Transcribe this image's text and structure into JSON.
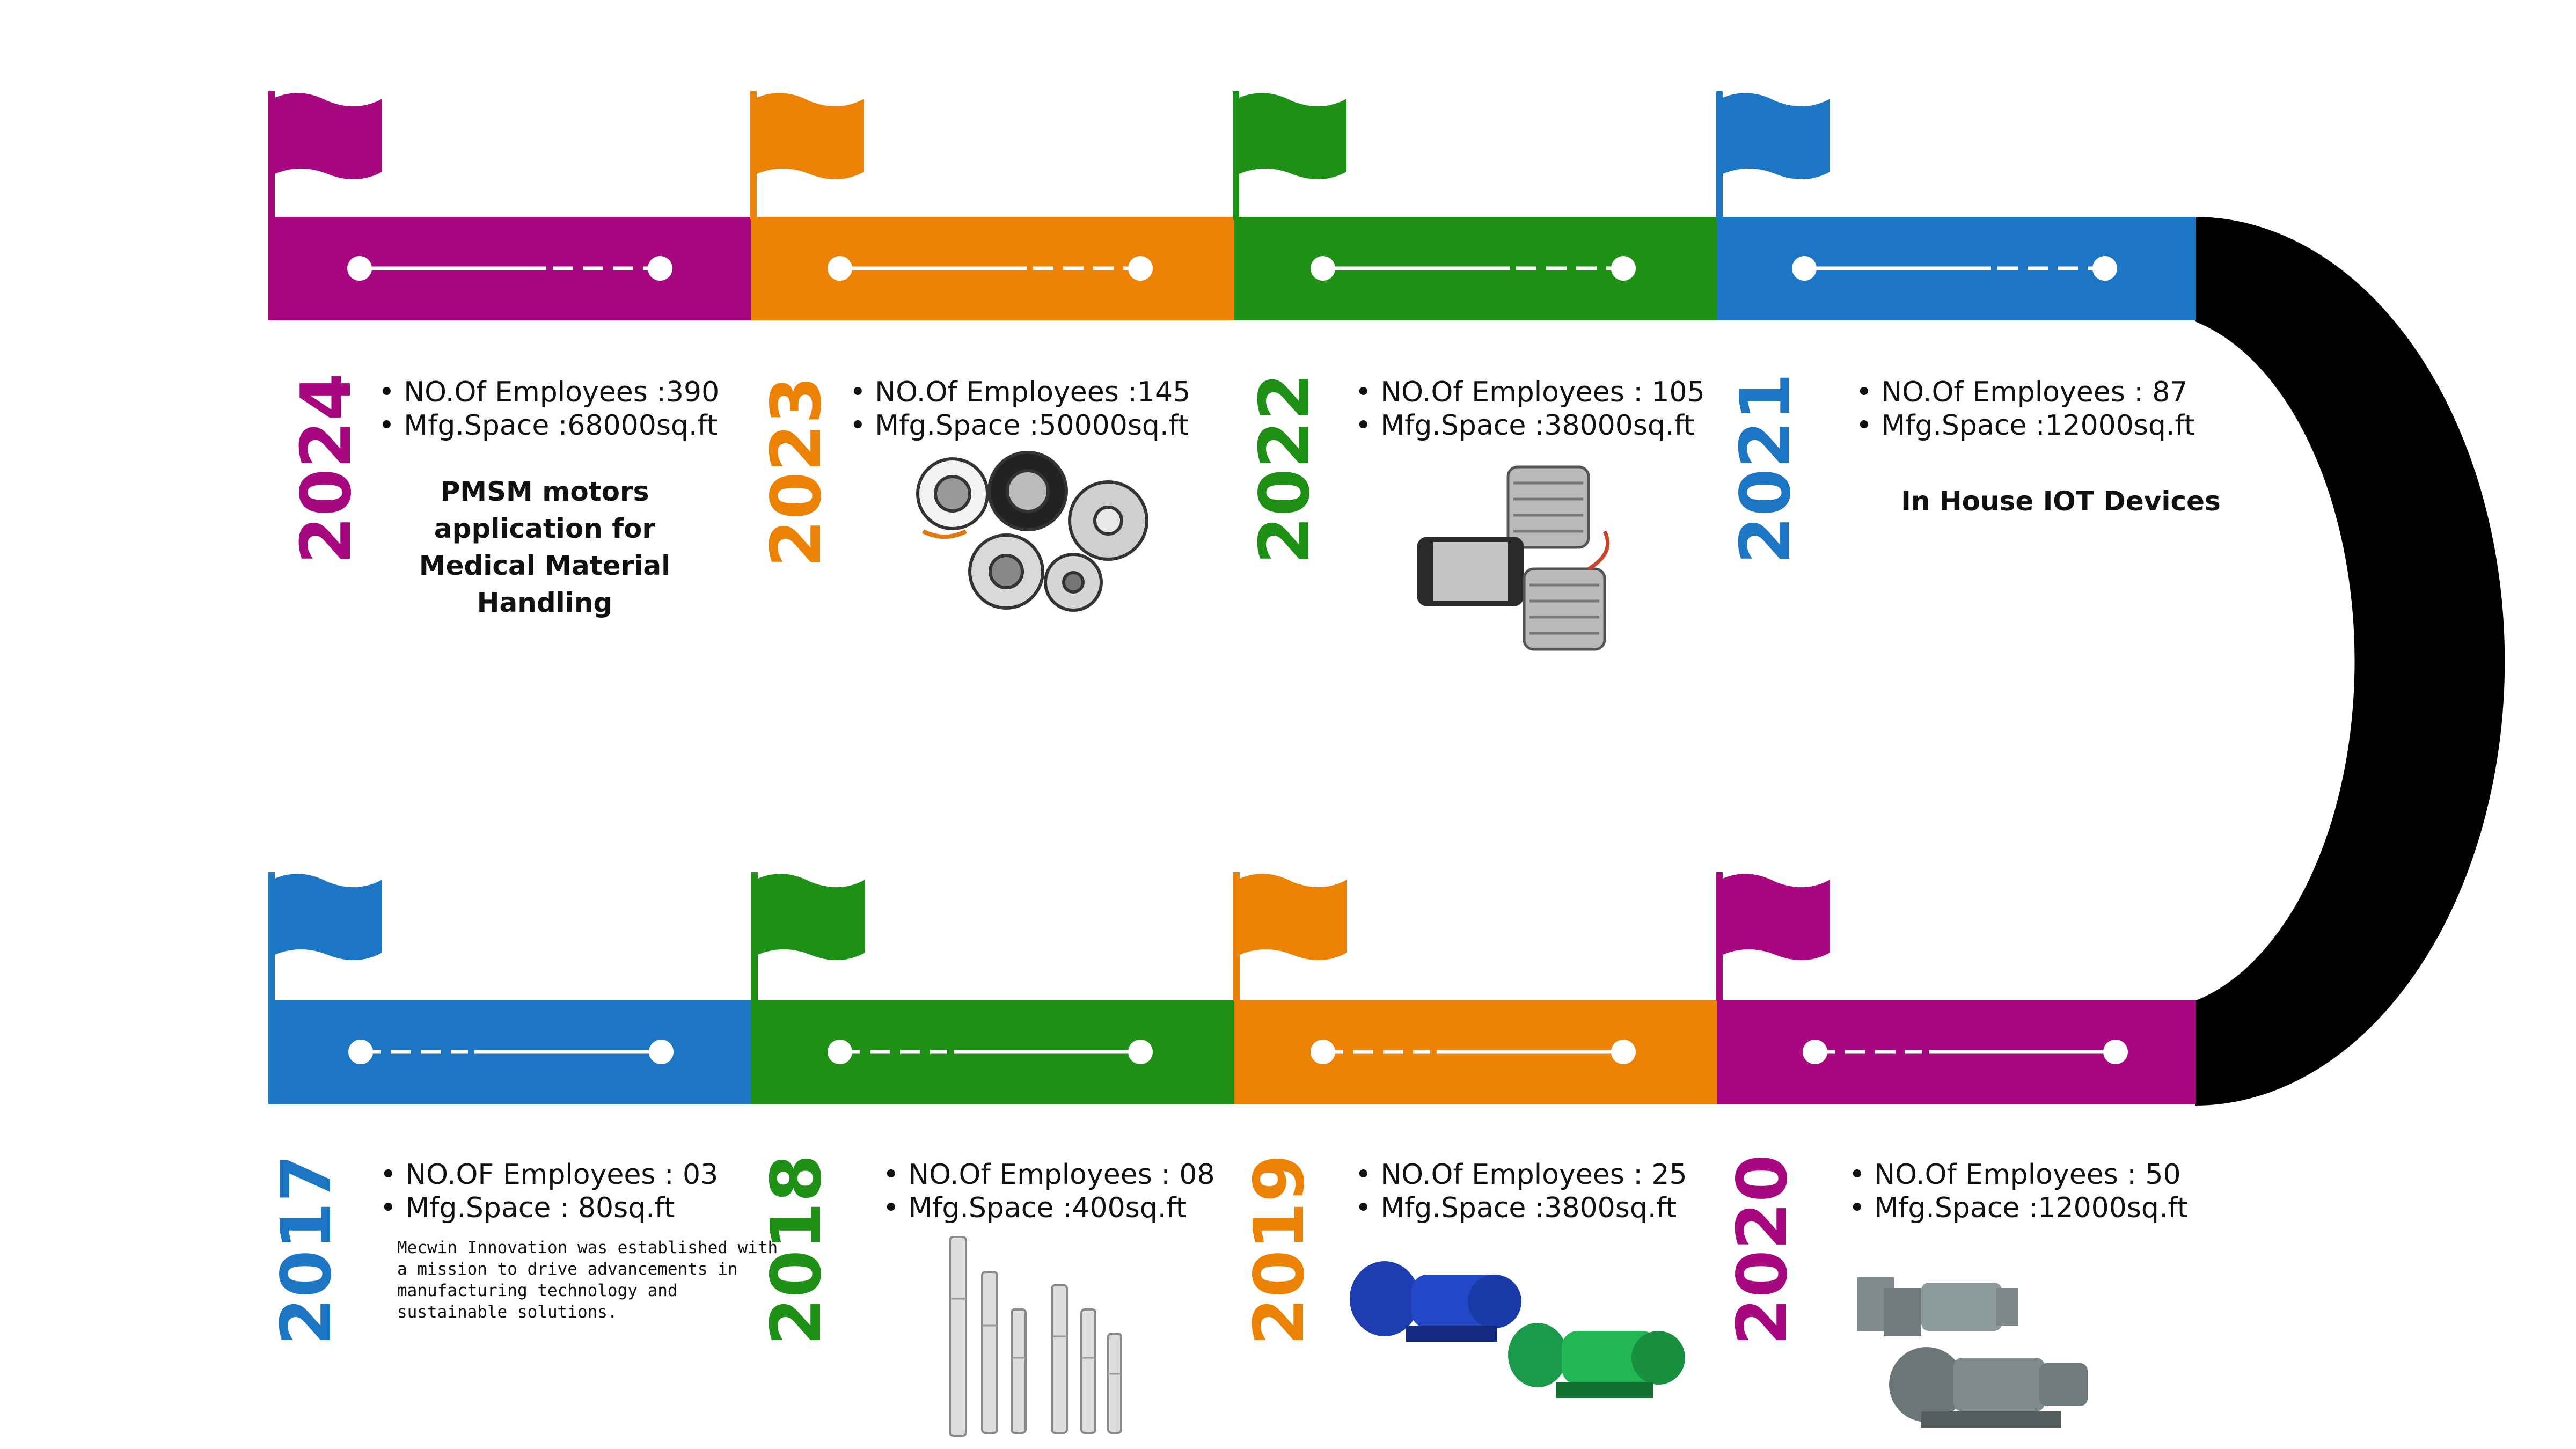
{
  "colors": {
    "magenta": "#a8087f",
    "orange": "#ec8204",
    "green": "#1f9016",
    "blue": "#1c76c3",
    "connector": "#000000",
    "track": "#ffffff"
  },
  "milestones_top": [
    {
      "year": "2024",
      "color": "#a8087f",
      "flag_icon": "flag-icon",
      "employees": "NO.Of Employees :390",
      "space": "Mfg.Space :68000sq.ft",
      "note": "PMSM motors application for Medical Material Handling",
      "image": "none"
    },
    {
      "year": "2023",
      "color": "#ec8204",
      "flag_icon": "flag-icon",
      "employees": "NO.Of Employees :145",
      "space": "Mfg.Space :50000sq.ft",
      "image": "hub-motors-image"
    },
    {
      "year": "2022",
      "color": "#1f9016",
      "flag_icon": "flag-icon",
      "employees": "NO.Of Employees : 105",
      "space": "Mfg.Space :38000sq.ft",
      "image": "bldc-motors-image"
    },
    {
      "year": "2021",
      "color": "#1c76c3",
      "flag_icon": "flag-icon",
      "employees": "NO.Of Employees : 87",
      "space": "Mfg.Space :12000sq.ft",
      "note": "In House IOT Devices",
      "image": "none"
    }
  ],
  "milestones_bottom": [
    {
      "year": "2017",
      "color": "#1c76c3",
      "flag_icon": "flag-icon",
      "employees": "NO.OF Employees : 03",
      "space": "Mfg.Space : 80sq.ft",
      "note": "Mecwin Innovation was established with a mission to drive advancements in manufacturing technology and sustainable solutions.",
      "image": "none"
    },
    {
      "year": "2018",
      "color": "#1f9016",
      "flag_icon": "flag-icon",
      "employees": "NO.Of Employees : 08",
      "space": "Mfg.Space :400sq.ft",
      "image": "submersible-pumps-image"
    },
    {
      "year": "2019",
      "color": "#ec8204",
      "flag_icon": "flag-icon",
      "employees": "NO.Of Employees : 25",
      "space": "Mfg.Space :3800sq.ft",
      "image": "monoblock-pumps-image"
    },
    {
      "year": "2020",
      "color": "#a8087f",
      "flag_icon": "flag-icon",
      "employees": "NO.Of Employees : 50",
      "space": "Mfg.Space :12000sq.ft",
      "image": "centrifugal-pumps-image"
    }
  ]
}
